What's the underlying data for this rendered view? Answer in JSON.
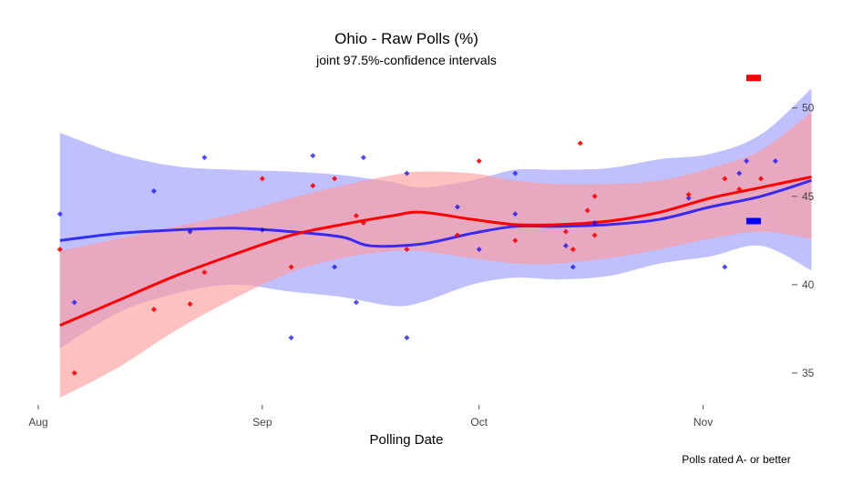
{
  "chart_data": {
    "type": "line",
    "title": "Ohio - Raw Polls (%)",
    "subtitle": "joint 97.5%-confidence intervals",
    "xlabel": "Polling Date",
    "caption": "Polls rated A- or better",
    "x_ticks": [
      {
        "label": "Aug",
        "date": "2016-08-01"
      },
      {
        "label": "Sep",
        "date": "2016-09-01"
      },
      {
        "label": "Oct",
        "date": "2016-10-01"
      },
      {
        "label": "Nov",
        "date": "2016-11-01"
      }
    ],
    "y_ticks": [
      35,
      40,
      45,
      50
    ],
    "xlim": [
      "2016-08-01",
      "2016-11-06"
    ],
    "ylim": [
      33.2,
      52.3
    ],
    "y_axis_side": "right",
    "grid": false,
    "legend": {
      "placement": "right",
      "entries": [
        {
          "color": "#ff0000",
          "value": 51.7
        },
        {
          "color": "#0000ff",
          "value": 43.6
        }
      ]
    },
    "series": [
      {
        "color": "#ff0000",
        "band_color": "#ff9999",
        "line": [
          {
            "x": "2016-08-04",
            "y": 37.7
          },
          {
            "x": "2016-08-12",
            "y": 39.1
          },
          {
            "x": "2016-08-20",
            "y": 40.5
          },
          {
            "x": "2016-08-28",
            "y": 41.7
          },
          {
            "x": "2016-09-05",
            "y": 42.8
          },
          {
            "x": "2016-09-12",
            "y": 43.4
          },
          {
            "x": "2016-09-19",
            "y": 43.9
          },
          {
            "x": "2016-09-23",
            "y": 44.1
          },
          {
            "x": "2016-09-30",
            "y": 43.7
          },
          {
            "x": "2016-10-06",
            "y": 43.4
          },
          {
            "x": "2016-10-12",
            "y": 43.4
          },
          {
            "x": "2016-10-19",
            "y": 43.6
          },
          {
            "x": "2016-10-26",
            "y": 44.1
          },
          {
            "x": "2016-11-02",
            "y": 44.9
          },
          {
            "x": "2016-11-09",
            "y": 45.5
          },
          {
            "x": "2016-11-16",
            "y": 46.1
          }
        ],
        "upper": [
          {
            "x": "2016-08-04",
            "y": 41.9
          },
          {
            "x": "2016-08-12",
            "y": 42.6
          },
          {
            "x": "2016-08-20",
            "y": 43.3
          },
          {
            "x": "2016-08-28",
            "y": 44.0
          },
          {
            "x": "2016-09-05",
            "y": 44.9
          },
          {
            "x": "2016-09-12",
            "y": 45.6
          },
          {
            "x": "2016-09-19",
            "y": 46.2
          },
          {
            "x": "2016-09-23",
            "y": 46.4
          },
          {
            "x": "2016-09-30",
            "y": 46.3
          },
          {
            "x": "2016-10-06",
            "y": 45.9
          },
          {
            "x": "2016-10-12",
            "y": 45.7
          },
          {
            "x": "2016-10-19",
            "y": 45.7
          },
          {
            "x": "2016-10-26",
            "y": 45.9
          },
          {
            "x": "2016-11-02",
            "y": 46.6
          },
          {
            "x": "2016-11-09",
            "y": 47.6
          },
          {
            "x": "2016-11-16",
            "y": 49.8
          }
        ],
        "lower": [
          {
            "x": "2016-08-04",
            "y": 33.6
          },
          {
            "x": "2016-08-12",
            "y": 35.3
          },
          {
            "x": "2016-08-20",
            "y": 37.4
          },
          {
            "x": "2016-08-28",
            "y": 39.2
          },
          {
            "x": "2016-09-05",
            "y": 40.7
          },
          {
            "x": "2016-09-12",
            "y": 41.5
          },
          {
            "x": "2016-09-19",
            "y": 41.9
          },
          {
            "x": "2016-09-23",
            "y": 41.9
          },
          {
            "x": "2016-09-30",
            "y": 41.5
          },
          {
            "x": "2016-10-06",
            "y": 41.2
          },
          {
            "x": "2016-10-12",
            "y": 41.2
          },
          {
            "x": "2016-10-19",
            "y": 41.5
          },
          {
            "x": "2016-10-26",
            "y": 42.0
          },
          {
            "x": "2016-11-02",
            "y": 42.6
          },
          {
            "x": "2016-11-09",
            "y": 43.0
          },
          {
            "x": "2016-11-16",
            "y": 42.6
          }
        ],
        "points": [
          {
            "x": "2016-08-04",
            "y": 42.0
          },
          {
            "x": "2016-08-06",
            "y": 35.0
          },
          {
            "x": "2016-08-17",
            "y": 38.6
          },
          {
            "x": "2016-08-22",
            "y": 38.9
          },
          {
            "x": "2016-08-24",
            "y": 40.7
          },
          {
            "x": "2016-09-01",
            "y": 46.0
          },
          {
            "x": "2016-09-05",
            "y": 41.0
          },
          {
            "x": "2016-09-08",
            "y": 45.6
          },
          {
            "x": "2016-09-11",
            "y": 46.0
          },
          {
            "x": "2016-09-14",
            "y": 43.9
          },
          {
            "x": "2016-09-15",
            "y": 43.5
          },
          {
            "x": "2016-09-21",
            "y": 42.0
          },
          {
            "x": "2016-09-28",
            "y": 42.8
          },
          {
            "x": "2016-10-01",
            "y": 47.0
          },
          {
            "x": "2016-10-06",
            "y": 42.5
          },
          {
            "x": "2016-10-13",
            "y": 43.0
          },
          {
            "x": "2016-10-14",
            "y": 42.0
          },
          {
            "x": "2016-10-15",
            "y": 48.0
          },
          {
            "x": "2016-10-16",
            "y": 44.2
          },
          {
            "x": "2016-10-17",
            "y": 45.0
          },
          {
            "x": "2016-10-17",
            "y": 42.8
          },
          {
            "x": "2016-10-30",
            "y": 45.1
          },
          {
            "x": "2016-11-04",
            "y": 46.0
          },
          {
            "x": "2016-11-06",
            "y": 45.4
          },
          {
            "x": "2016-11-09",
            "y": 46.0
          }
        ]
      },
      {
        "color": "#0000ff",
        "band_color": "#9999ff",
        "line": [
          {
            "x": "2016-08-04",
            "y": 42.5
          },
          {
            "x": "2016-08-12",
            "y": 42.9
          },
          {
            "x": "2016-08-20",
            "y": 43.1
          },
          {
            "x": "2016-08-28",
            "y": 43.2
          },
          {
            "x": "2016-09-05",
            "y": 43.0
          },
          {
            "x": "2016-09-12",
            "y": 42.7
          },
          {
            "x": "2016-09-16",
            "y": 42.2
          },
          {
            "x": "2016-09-23",
            "y": 42.3
          },
          {
            "x": "2016-09-30",
            "y": 42.9
          },
          {
            "x": "2016-10-06",
            "y": 43.3
          },
          {
            "x": "2016-10-12",
            "y": 43.3
          },
          {
            "x": "2016-10-19",
            "y": 43.4
          },
          {
            "x": "2016-10-26",
            "y": 43.7
          },
          {
            "x": "2016-11-02",
            "y": 44.4
          },
          {
            "x": "2016-11-09",
            "y": 45.0
          },
          {
            "x": "2016-11-16",
            "y": 45.9
          }
        ],
        "upper": [
          {
            "x": "2016-08-04",
            "y": 48.6
          },
          {
            "x": "2016-08-12",
            "y": 47.4
          },
          {
            "x": "2016-08-20",
            "y": 46.7
          },
          {
            "x": "2016-08-28",
            "y": 46.5
          },
          {
            "x": "2016-09-05",
            "y": 46.4
          },
          {
            "x": "2016-09-12",
            "y": 46.2
          },
          {
            "x": "2016-09-19",
            "y": 45.8
          },
          {
            "x": "2016-09-23",
            "y": 45.5
          },
          {
            "x": "2016-09-30",
            "y": 45.9
          },
          {
            "x": "2016-10-06",
            "y": 46.5
          },
          {
            "x": "2016-10-12",
            "y": 46.5
          },
          {
            "x": "2016-10-19",
            "y": 46.6
          },
          {
            "x": "2016-10-26",
            "y": 47.1
          },
          {
            "x": "2016-11-02",
            "y": 47.4
          },
          {
            "x": "2016-11-09",
            "y": 48.5
          },
          {
            "x": "2016-11-16",
            "y": 51.1
          }
        ],
        "lower": [
          {
            "x": "2016-08-04",
            "y": 36.4
          },
          {
            "x": "2016-08-12",
            "y": 38.4
          },
          {
            "x": "2016-08-20",
            "y": 39.5
          },
          {
            "x": "2016-08-28",
            "y": 40.0
          },
          {
            "x": "2016-09-05",
            "y": 39.6
          },
          {
            "x": "2016-09-12",
            "y": 39.3
          },
          {
            "x": "2016-09-19",
            "y": 38.8
          },
          {
            "x": "2016-09-23",
            "y": 39.0
          },
          {
            "x": "2016-09-30",
            "y": 40.0
          },
          {
            "x": "2016-10-06",
            "y": 40.4
          },
          {
            "x": "2016-10-12",
            "y": 40.3
          },
          {
            "x": "2016-10-19",
            "y": 40.5
          },
          {
            "x": "2016-10-26",
            "y": 41.2
          },
          {
            "x": "2016-11-02",
            "y": 41.6
          },
          {
            "x": "2016-11-09",
            "y": 42.2
          },
          {
            "x": "2016-11-16",
            "y": 40.8
          }
        ],
        "points": [
          {
            "x": "2016-08-04",
            "y": 44.0
          },
          {
            "x": "2016-08-06",
            "y": 39.0
          },
          {
            "x": "2016-08-17",
            "y": 45.3
          },
          {
            "x": "2016-08-22",
            "y": 43.0
          },
          {
            "x": "2016-08-24",
            "y": 47.2
          },
          {
            "x": "2016-09-01",
            "y": 43.1
          },
          {
            "x": "2016-09-05",
            "y": 37.0
          },
          {
            "x": "2016-09-08",
            "y": 47.3
          },
          {
            "x": "2016-09-11",
            "y": 41.0
          },
          {
            "x": "2016-09-14",
            "y": 39.0
          },
          {
            "x": "2016-09-15",
            "y": 47.2
          },
          {
            "x": "2016-09-21",
            "y": 46.3
          },
          {
            "x": "2016-09-21",
            "y": 37.0
          },
          {
            "x": "2016-09-28",
            "y": 44.4
          },
          {
            "x": "2016-10-01",
            "y": 42.0
          },
          {
            "x": "2016-10-06",
            "y": 46.3
          },
          {
            "x": "2016-10-06",
            "y": 44.0
          },
          {
            "x": "2016-10-13",
            "y": 42.2
          },
          {
            "x": "2016-10-14",
            "y": 41.0
          },
          {
            "x": "2016-10-17",
            "y": 43.5
          },
          {
            "x": "2016-10-30",
            "y": 44.9
          },
          {
            "x": "2016-11-04",
            "y": 41.0
          },
          {
            "x": "2016-11-06",
            "y": 46.3
          },
          {
            "x": "2016-11-07",
            "y": 47.0
          },
          {
            "x": "2016-11-11",
            "y": 47.0
          }
        ]
      }
    ]
  }
}
